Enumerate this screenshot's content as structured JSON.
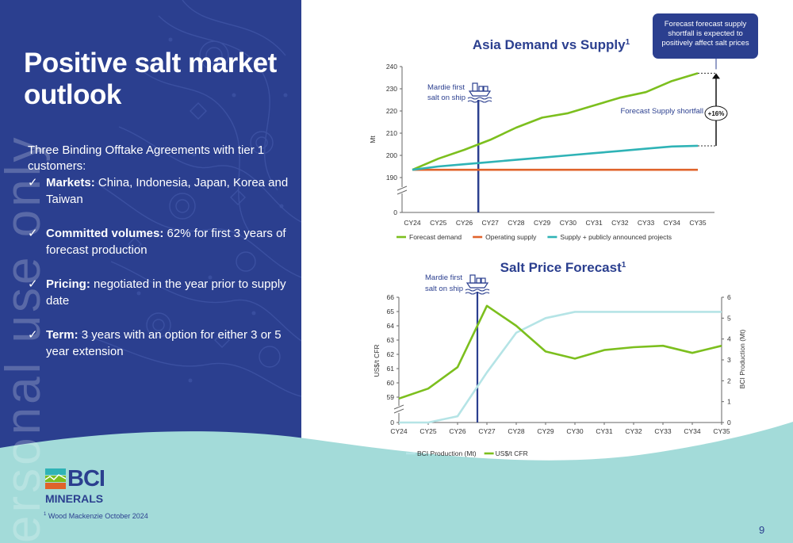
{
  "slide": {
    "title": "Positive salt market outlook",
    "intro": "Three Binding Offtake Agreements with tier 1 customers:",
    "bullets": [
      {
        "tick": "✓",
        "label": "Markets:",
        "text": " China, Indonesia, Japan, Korea and Taiwan"
      },
      {
        "tick": "✓",
        "label": "Committed volumes:",
        "text": " 62% for first 3 years of forecast production"
      },
      {
        "tick": "✓",
        "label": "Pricing:",
        "text": " negotiated in the year prior to supply date"
      },
      {
        "tick": "✓",
        "label": "Term:",
        "text": " 3 years with an option for either 3 or 5 year extension"
      }
    ],
    "watermark": "ersonal use only",
    "logo": {
      "bci": "BCI",
      "minerals": "MINERALS"
    },
    "footnote": {
      "marker": "1",
      "text": " Wood Mackenzie October 2024"
    },
    "page_number": "9",
    "callout": "Forecast forecast supply shortfall is expected to positively affect salt prices",
    "colors": {
      "navy": "#2b3f8f",
      "teal_wave": "#a3dbd9",
      "green": "#7cbf1e",
      "orange": "#e0632b",
      "teal": "#2fb3b6",
      "light_teal": "#b5e4e6"
    }
  },
  "chart_data": [
    {
      "type": "line",
      "title": "Asia Demand vs Supply",
      "title_sup": "1",
      "xlabel": "",
      "ylabel": "Mt",
      "categories": [
        "CY24",
        "CY25",
        "CY26",
        "CY27",
        "CY28",
        "CY29",
        "CY30",
        "CY31",
        "CY32",
        "CY33",
        "CY34",
        "CY35"
      ],
      "yticks": [
        0,
        190,
        200,
        210,
        220,
        230,
        240
      ],
      "ylim": [
        185,
        240
      ],
      "axis_break": true,
      "series": [
        {
          "name": "Forecast demand",
          "color": "#7cbf1e",
          "values": [
            193.5,
            198.5,
            202.5,
            207,
            212.5,
            217,
            219,
            222.5,
            226,
            228.5,
            233.5,
            237
          ]
        },
        {
          "name": "Operating supply",
          "color": "#e0632b",
          "values": [
            193.5,
            193.5,
            193.5,
            193.5,
            193.5,
            193.5,
            193.5,
            193.5,
            193.5,
            193.5,
            193.5,
            193.5
          ]
        },
        {
          "name": "Supply + publicly announced projects",
          "color": "#2fb3b6",
          "values": [
            193.5,
            195,
            196,
            197,
            198,
            199,
            200,
            201,
            202,
            203,
            204,
            204.3
          ]
        }
      ],
      "annotations": {
        "mardie": [
          "Mardie first",
          "salt on ship"
        ],
        "mardie_category": "CY27",
        "shortfall_label": "Forecast Supply shortfall",
        "shortfall_badge": "+16%"
      },
      "legend_position": "bottom"
    },
    {
      "type": "line",
      "title": "Salt Price Forecast",
      "title_sup": "1",
      "ylabel_left": "US$/t CFR",
      "ylabel_right": "BCI Production (Mt)",
      "categories": [
        "CY24",
        "CY25",
        "CY26",
        "CY27",
        "CY28",
        "CY29",
        "CY30",
        "CY31",
        "CY32",
        "CY33",
        "CY34",
        "CY35"
      ],
      "yticks_left": [
        0,
        59,
        60,
        61,
        62,
        63,
        64,
        65,
        66
      ],
      "ylim_left": [
        58.5,
        66
      ],
      "yticks_right": [
        0,
        1,
        2,
        3,
        4,
        5,
        6
      ],
      "ylim_right": [
        0,
        6
      ],
      "axis_break": true,
      "series": [
        {
          "name": "BCI Production (Mt)",
          "color": "#b5e4e6",
          "axis": "right",
          "values": [
            0,
            0,
            0.3,
            2.4,
            4.3,
            5.0,
            5.3,
            5.3,
            5.3,
            5.3,
            5.3,
            5.3
          ]
        },
        {
          "name": "US$/t CFR",
          "color": "#7cbf1e",
          "axis": "left",
          "values": [
            58.9,
            59.6,
            61.1,
            65.4,
            64.0,
            62.2,
            61.7,
            62.3,
            62.5,
            62.6,
            62.1,
            62.6
          ]
        }
      ],
      "annotations": {
        "mardie": [
          "Mardie first",
          "salt on ship"
        ],
        "mardie_category": "CY27"
      },
      "legend_position": "bottom"
    }
  ]
}
